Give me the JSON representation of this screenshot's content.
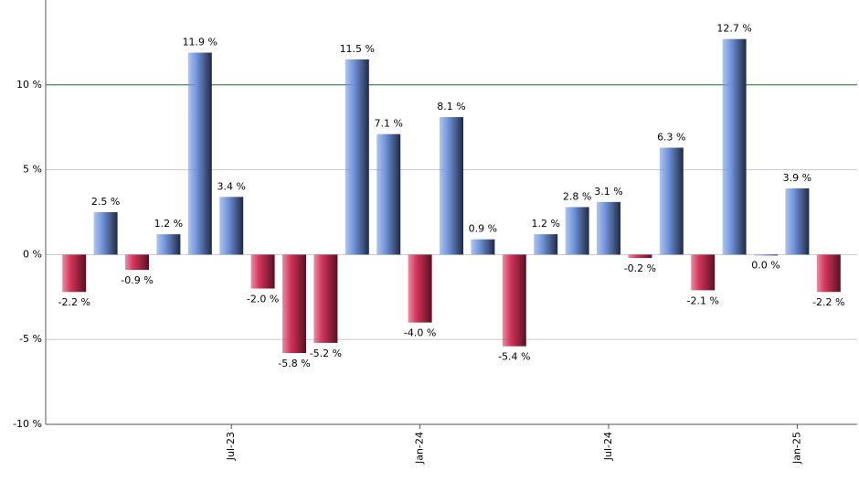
{
  "chart_data": {
    "type": "bar",
    "categories": [
      null,
      null,
      null,
      null,
      null,
      "Jul-23",
      null,
      null,
      null,
      null,
      null,
      "Jan-24",
      null,
      null,
      null,
      null,
      null,
      "Jul-24",
      null,
      null,
      null,
      null,
      null,
      "Jan-25",
      null
    ],
    "values": [
      -2.2,
      2.5,
      -0.9,
      1.2,
      11.9,
      3.4,
      -2.0,
      -5.8,
      -5.2,
      11.5,
      7.1,
      -4.0,
      8.1,
      0.9,
      -5.4,
      1.2,
      2.8,
      3.1,
      -0.2,
      6.3,
      -2.1,
      12.7,
      0.0,
      3.9,
      -2.2
    ],
    "value_labels": [
      "-2.2 %",
      "2.5 %",
      "-0.9 %",
      "1.2 %",
      "11.9 %",
      "3.4 %",
      "-2.0 %",
      "-5.8 %",
      "-5.2 %",
      "11.5 %",
      "7.1 %",
      "-4.0 %",
      "8.1 %",
      "0.9 %",
      "-5.4 %",
      "1.2 %",
      "2.8 %",
      "3.1 %",
      "-0.2 %",
      "6.3 %",
      "-2.1 %",
      "12.7 %",
      "0.0 %",
      "3.9 %",
      "-2.2 %"
    ],
    "positive_color": "#7295dd",
    "negative_color": "#d2345a",
    "ylim": [
      -10,
      15
    ],
    "yticks": [
      {
        "value": -10,
        "label": "-10 %"
      },
      {
        "value": -5,
        "label": "-5 %"
      },
      {
        "value": 0,
        "label": "0 %"
      },
      {
        "value": 5,
        "label": "5 %"
      },
      {
        "value": 10,
        "label": "10 %"
      }
    ],
    "reference_line": 10,
    "reference_color": "#2e7d32",
    "grid": true
  }
}
